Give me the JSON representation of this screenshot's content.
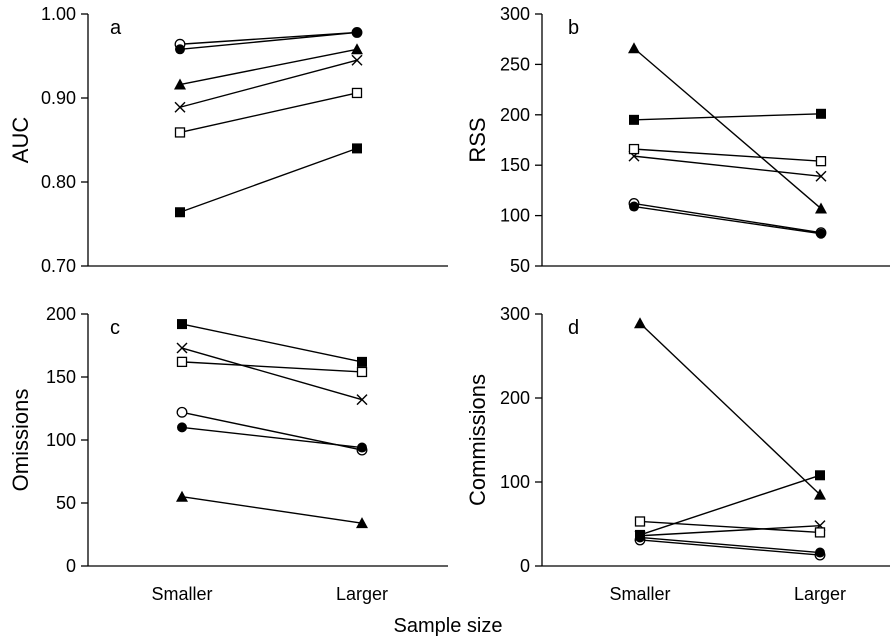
{
  "figure": {
    "xlabel": "Sample size"
  },
  "chart_data": [
    {
      "type": "line",
      "panel_letter": "a",
      "ylabel": "AUC",
      "categories": [
        "Smaller",
        "Larger"
      ],
      "ylim": [
        0.7,
        1.0
      ],
      "yticks": [
        0.7,
        0.8,
        0.9,
        1.0
      ],
      "ytick_labels": [
        "0.70",
        "0.80",
        "0.90",
        "1.00"
      ],
      "series": [
        {
          "marker": "open-circle",
          "values": [
            0.964,
            0.978
          ]
        },
        {
          "marker": "filled-circle",
          "values": [
            0.958,
            0.978
          ]
        },
        {
          "marker": "filled-triangle",
          "values": [
            0.916,
            0.958
          ]
        },
        {
          "marker": "cross",
          "values": [
            0.889,
            0.945
          ]
        },
        {
          "marker": "open-square",
          "values": [
            0.859,
            0.906
          ]
        },
        {
          "marker": "filled-square",
          "values": [
            0.764,
            0.84
          ]
        }
      ]
    },
    {
      "type": "line",
      "panel_letter": "b",
      "ylabel": "RSS",
      "categories": [
        "Smaller",
        "Larger"
      ],
      "ylim": [
        50,
        300
      ],
      "yticks": [
        50,
        100,
        150,
        200,
        250,
        300
      ],
      "ytick_labels": [
        "50",
        "100",
        "150",
        "200",
        "250",
        "300"
      ],
      "series": [
        {
          "marker": "open-circle",
          "values": [
            112,
            83
          ]
        },
        {
          "marker": "filled-circle",
          "values": [
            109,
            82
          ]
        },
        {
          "marker": "filled-triangle",
          "values": [
            266,
            107
          ]
        },
        {
          "marker": "cross",
          "values": [
            159,
            139
          ]
        },
        {
          "marker": "open-square",
          "values": [
            166,
            154
          ]
        },
        {
          "marker": "filled-square",
          "values": [
            195,
            201
          ]
        }
      ]
    },
    {
      "type": "line",
      "panel_letter": "c",
      "ylabel": "Omissions",
      "categories": [
        "Smaller",
        "Larger"
      ],
      "ylim": [
        0,
        200
      ],
      "yticks": [
        0,
        50,
        100,
        150,
        200
      ],
      "ytick_labels": [
        "0",
        "50",
        "100",
        "150",
        "200"
      ],
      "series": [
        {
          "marker": "open-circle",
          "values": [
            122,
            92
          ]
        },
        {
          "marker": "filled-circle",
          "values": [
            110,
            94
          ]
        },
        {
          "marker": "filled-triangle",
          "values": [
            55,
            34
          ]
        },
        {
          "marker": "cross",
          "values": [
            173,
            132
          ]
        },
        {
          "marker": "open-square",
          "values": [
            162,
            154
          ]
        },
        {
          "marker": "filled-square",
          "values": [
            192,
            162
          ]
        }
      ]
    },
    {
      "type": "line",
      "panel_letter": "d",
      "ylabel": "Commissions",
      "categories": [
        "Smaller",
        "Larger"
      ],
      "ylim": [
        0,
        300
      ],
      "yticks": [
        0,
        100,
        200,
        300
      ],
      "ytick_labels": [
        "0",
        "100",
        "200",
        "300"
      ],
      "series": [
        {
          "marker": "open-circle",
          "values": [
            31,
            13
          ]
        },
        {
          "marker": "filled-circle",
          "values": [
            34,
            16
          ]
        },
        {
          "marker": "filled-triangle",
          "values": [
            289,
            85
          ]
        },
        {
          "marker": "cross",
          "values": [
            36,
            48
          ]
        },
        {
          "marker": "open-square",
          "values": [
            53,
            40
          ]
        },
        {
          "marker": "filled-square",
          "values": [
            37,
            108
          ]
        }
      ]
    }
  ]
}
